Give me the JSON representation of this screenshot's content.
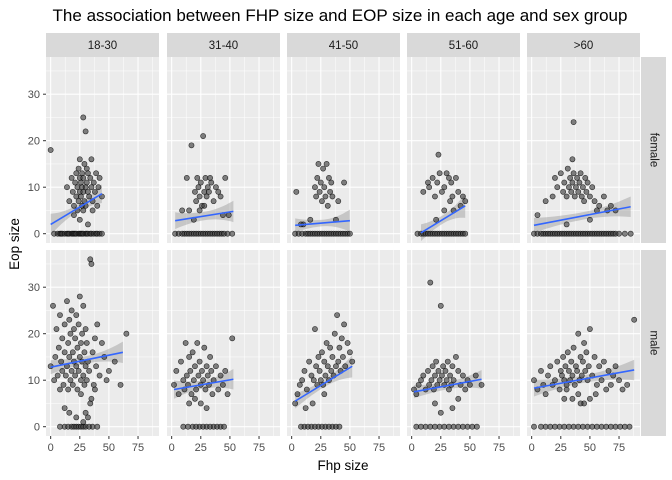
{
  "chart_data": {
    "type": "scatter",
    "title": "The association between FHP size and EOP size in each age and sex group",
    "xlabel": "Fhp size",
    "ylabel": "Eop size",
    "xlim": [
      -4,
      93
    ],
    "ylim": [
      -2,
      38
    ],
    "x_ticks": [
      0,
      25,
      50,
      75
    ],
    "y_ticks_female": [
      0,
      10,
      20,
      30
    ],
    "y_ticks_male": [
      0,
      10,
      20,
      30
    ],
    "facet_cols": [
      "18-30",
      "31-40",
      "41-50",
      "51-60",
      ">60"
    ],
    "facet_rows": [
      "female",
      "male"
    ],
    "grid": true,
    "point_color": "#333333",
    "line_color": "#3366FF",
    "band_color": "#999999",
    "panel_bg": "#EBEBEB",
    "strip_bg": "#D9D9D9",
    "panels": [
      {
        "col": "18-30",
        "row": "female",
        "zero_x": [
          3,
          6,
          8,
          9,
          10,
          12,
          14,
          15,
          16,
          18,
          19,
          20,
          21,
          22,
          24,
          25,
          26,
          27,
          28,
          30,
          31,
          32,
          34,
          35,
          37,
          39,
          40,
          42,
          44
        ],
        "x": [
          0,
          14,
          16,
          18,
          19,
          20,
          21,
          22,
          22,
          23,
          23,
          24,
          24,
          25,
          25,
          25,
          26,
          26,
          27,
          27,
          27,
          28,
          28,
          28,
          29,
          29,
          30,
          30,
          30,
          31,
          31,
          32,
          32,
          33,
          34,
          35,
          35,
          36,
          37,
          38,
          39,
          40,
          41,
          42,
          44,
          20,
          25,
          28,
          32,
          36
        ],
        "y": [
          18,
          10,
          7,
          12,
          9,
          6,
          11,
          8,
          13,
          5,
          10,
          14,
          7,
          9,
          12,
          16,
          8,
          11,
          6,
          10,
          13,
          25,
          9,
          12,
          7,
          15,
          10,
          22,
          6,
          11,
          14,
          9,
          13,
          8,
          12,
          10,
          16,
          7,
          11,
          9,
          13,
          6,
          10,
          12,
          8,
          4,
          3,
          5,
          2,
          5
        ],
        "fit": {
          "x0": 0,
          "y0": 2.0,
          "x1": 44,
          "y1": 8.6
        },
        "band": {
          "w0": 2.3,
          "wmid": 0.8,
          "w1": 2.0
        }
      },
      {
        "col": "31-40",
        "row": "female",
        "zero_x": [
          3,
          6,
          9,
          11,
          13,
          15,
          17,
          19,
          21,
          23,
          25,
          27,
          29,
          31,
          33,
          35,
          37,
          39,
          41,
          43,
          45,
          48,
          52
        ],
        "x": [
          9,
          13,
          17,
          20,
          21,
          22,
          23,
          24,
          25,
          26,
          27,
          28,
          29,
          30,
          31,
          32,
          34,
          36,
          38,
          40,
          42,
          44,
          46,
          49,
          24,
          28,
          33,
          15,
          19
        ],
        "y": [
          5,
          12,
          19,
          9,
          7,
          12,
          10,
          8,
          11,
          6,
          21,
          9,
          12,
          8,
          10,
          9,
          11,
          7,
          10,
          9,
          8,
          4,
          12,
          4,
          5,
          6,
          12,
          5,
          3
        ],
        "fit": {
          "x0": 3,
          "y0": 2.8,
          "x1": 53,
          "y1": 4.8
        },
        "band": {
          "w0": 1.8,
          "wmid": 0.9,
          "w1": 2.3
        }
      },
      {
        "col": "41-50",
        "row": "female",
        "zero_x": [
          3,
          6,
          9,
          12,
          14,
          16,
          18,
          20,
          22,
          24,
          26,
          28,
          30,
          32,
          34,
          36,
          38,
          40,
          42,
          44,
          46,
          48,
          50
        ],
        "x": [
          4,
          10,
          20,
          21,
          22,
          23,
          24,
          25,
          26,
          27,
          28,
          29,
          30,
          31,
          32,
          33,
          34,
          35,
          38,
          40,
          45,
          8,
          16
        ],
        "y": [
          9,
          2,
          10,
          8,
          12,
          15,
          9,
          11,
          7,
          14,
          10,
          8,
          15,
          6,
          12,
          9,
          11,
          8,
          3,
          7,
          11,
          2,
          3
        ],
        "fit": {
          "x0": 3,
          "y0": 1.8,
          "x1": 50,
          "y1": 2.8
        },
        "band": {
          "w0": 1.5,
          "wmid": 0.7,
          "w1": 2.4
        }
      },
      {
        "col": "51-60",
        "row": "female",
        "zero_x": [
          5,
          8,
          10,
          12,
          14,
          16,
          18,
          20,
          22,
          24,
          26,
          28,
          30,
          32,
          34,
          36,
          38,
          40,
          42,
          44,
          46
        ],
        "x": [
          10,
          14,
          15,
          18,
          20,
          22,
          23,
          24,
          26,
          28,
          30,
          32,
          33,
          34,
          35,
          36,
          38,
          40,
          42,
          44,
          46,
          21,
          28
        ],
        "y": [
          9,
          11,
          10,
          12,
          8,
          11,
          17,
          13,
          9,
          10,
          13,
          12,
          7,
          11,
          8,
          5,
          12,
          9,
          6,
          8,
          7,
          3,
          5
        ],
        "fit": {
          "x0": 8,
          "y0": 0.2,
          "x1": 46,
          "y1": 6.0
        },
        "band": {
          "w0": 1.8,
          "wmid": 0.9,
          "w1": 2.6
        }
      },
      {
        "col": ">60",
        "row": "female",
        "zero_x": [
          2,
          5,
          8,
          10,
          12,
          14,
          16,
          18,
          20,
          22,
          24,
          26,
          28,
          30,
          32,
          34,
          36,
          38,
          40,
          42,
          44,
          46,
          48,
          50,
          52,
          54,
          56,
          58,
          60,
          62,
          64,
          66,
          68,
          70,
          72,
          75,
          80,
          85
        ],
        "x": [
          5,
          12,
          18,
          20,
          22,
          25,
          27,
          28,
          30,
          31,
          32,
          33,
          34,
          35,
          35,
          36,
          37,
          38,
          39,
          40,
          41,
          42,
          43,
          44,
          45,
          46,
          47,
          48,
          50,
          52,
          54,
          56,
          58,
          62,
          65,
          68,
          72,
          36,
          30,
          50
        ],
        "y": [
          4,
          7,
          8,
          12,
          10,
          13,
          9,
          11,
          8,
          14,
          10,
          12,
          9,
          16,
          11,
          13,
          8,
          10,
          12,
          9,
          11,
          13,
          8,
          10,
          7,
          12,
          9,
          11,
          8,
          10,
          7,
          5,
          6,
          8,
          5,
          6,
          5,
          24,
          2,
          3
        ],
        "fit": {
          "x0": 2,
          "y0": 1.8,
          "x1": 85,
          "y1": 5.8
        },
        "band": {
          "w0": 1.6,
          "wmid": 0.8,
          "w1": 2.2
        }
      },
      {
        "col": "18-30",
        "row": "male",
        "zero_x": [
          8,
          12,
          15,
          18,
          20,
          22,
          24,
          26,
          28,
          30,
          33,
          36,
          40
        ],
        "x": [
          0,
          2,
          3,
          4,
          5,
          6,
          7,
          8,
          8,
          9,
          10,
          10,
          11,
          12,
          12,
          13,
          14,
          14,
          15,
          15,
          16,
          16,
          17,
          17,
          18,
          18,
          19,
          19,
          20,
          20,
          21,
          21,
          22,
          22,
          23,
          23,
          24,
          24,
          25,
          25,
          26,
          26,
          27,
          27,
          28,
          28,
          29,
          29,
          30,
          30,
          31,
          31,
          32,
          33,
          34,
          35,
          36,
          37,
          38,
          39,
          40,
          42,
          44,
          46,
          48,
          50,
          55,
          60,
          65,
          30,
          32,
          34,
          35,
          28,
          22,
          16,
          12,
          26,
          38
        ],
        "y": [
          13,
          26,
          10,
          15,
          21,
          11,
          17,
          8,
          24,
          14,
          12,
          19,
          9,
          22,
          16,
          11,
          27,
          13,
          18,
          8,
          23,
          15,
          10,
          20,
          12,
          25,
          16,
          9,
          21,
          14,
          11,
          19,
          13,
          24,
          8,
          17,
          22,
          12,
          15,
          28,
          10,
          18,
          14,
          20,
          11,
          26,
          16,
          9,
          21,
          13,
          18,
          10,
          14,
          12,
          36,
          35,
          16,
          9,
          19,
          13,
          22,
          11,
          18,
          15,
          10,
          12,
          14,
          9,
          20,
          3,
          2,
          5,
          6,
          1,
          2,
          3,
          4,
          7,
          8
        ],
        "fit": {
          "x0": 0,
          "y0": 12.8,
          "x1": 62,
          "y1": 16.0
        },
        "band": {
          "w0": 1.5,
          "wmid": 0.8,
          "w1": 2.3
        }
      },
      {
        "col": "31-40",
        "row": "male",
        "zero_x": [
          10,
          14,
          18,
          21,
          24,
          27,
          30,
          33,
          36,
          39,
          42,
          45
        ],
        "x": [
          2,
          4,
          6,
          8,
          10,
          11,
          12,
          13,
          14,
          15,
          16,
          17,
          18,
          19,
          20,
          21,
          22,
          23,
          24,
          25,
          26,
          27,
          28,
          29,
          30,
          31,
          32,
          33,
          34,
          35,
          36,
          38,
          40,
          42,
          44,
          46,
          48,
          52,
          20,
          25,
          30,
          15
        ],
        "y": [
          9,
          12,
          7,
          14,
          10,
          8,
          18,
          11,
          9,
          15,
          12,
          7,
          16,
          10,
          13,
          8,
          18,
          11,
          14,
          9,
          12,
          10,
          17,
          8,
          13,
          11,
          9,
          15,
          12,
          7,
          10,
          13,
          8,
          11,
          9,
          12,
          7,
          19,
          6,
          5,
          4,
          5
        ],
        "fit": {
          "x0": 2,
          "y0": 8.0,
          "x1": 53,
          "y1": 10.2
        },
        "band": {
          "w0": 2.0,
          "wmid": 0.9,
          "w1": 2.2
        }
      },
      {
        "col": "41-50",
        "row": "male",
        "zero_x": [
          8,
          11,
          14,
          17,
          20,
          23,
          26,
          29,
          32,
          35,
          38,
          41
        ],
        "x": [
          3,
          5,
          7,
          9,
          11,
          13,
          15,
          17,
          19,
          20,
          21,
          22,
          23,
          24,
          25,
          26,
          27,
          28,
          29,
          30,
          31,
          32,
          33,
          34,
          35,
          36,
          37,
          38,
          39,
          40,
          41,
          42,
          43,
          44,
          45,
          46,
          48,
          50,
          52,
          12,
          18,
          28
        ],
        "y": [
          5,
          7,
          9,
          10,
          12,
          8,
          14,
          11,
          10,
          21,
          13,
          9,
          15,
          12,
          10,
          16,
          9,
          14,
          11,
          18,
          13,
          10,
          17,
          12,
          15,
          11,
          20,
          13,
          24,
          14,
          17,
          12,
          19,
          15,
          22,
          13,
          18,
          16,
          14,
          4,
          5,
          7
        ],
        "fit": {
          "x0": 3,
          "y0": 5.5,
          "x1": 52,
          "y1": 13.0
        },
        "band": {
          "w0": 1.6,
          "wmid": 0.8,
          "w1": 2.4
        }
      },
      {
        "col": "51-60",
        "row": "male",
        "zero_x": [
          4,
          8,
          12,
          16,
          20,
          24,
          28,
          32,
          36,
          40,
          44,
          48,
          52,
          56
        ],
        "x": [
          2,
          4,
          6,
          8,
          10,
          12,
          14,
          15,
          16,
          17,
          18,
          19,
          20,
          21,
          22,
          23,
          24,
          25,
          26,
          27,
          28,
          29,
          30,
          31,
          32,
          33,
          34,
          35,
          36,
          38,
          40,
          42,
          44,
          46,
          48,
          50,
          55,
          60,
          20,
          35,
          25,
          40
        ],
        "y": [
          8,
          7,
          9,
          10,
          11,
          8,
          12,
          9,
          31,
          10,
          13,
          8,
          11,
          14,
          9,
          12,
          10,
          26,
          11,
          13,
          9,
          12,
          10,
          14,
          8,
          11,
          9,
          13,
          10,
          15,
          12,
          9,
          11,
          8,
          10,
          9,
          11,
          9,
          5,
          4,
          3,
          6
        ],
        "fit": {
          "x0": 2,
          "y0": 7.5,
          "x1": 60,
          "y1": 10.2
        },
        "band": {
          "w0": 1.4,
          "wmid": 0.8,
          "w1": 2.0
        }
      },
      {
        "col": ">60",
        "row": "male",
        "zero_x": [
          2,
          8,
          12,
          16,
          20,
          24,
          28,
          32,
          36,
          40,
          44,
          48,
          52,
          56,
          60,
          64,
          68,
          72,
          76,
          80,
          84
        ],
        "x": [
          2,
          5,
          8,
          10,
          12,
          14,
          16,
          18,
          20,
          22,
          24,
          25,
          26,
          27,
          28,
          29,
          30,
          31,
          32,
          33,
          34,
          35,
          36,
          37,
          38,
          39,
          40,
          41,
          42,
          43,
          44,
          45,
          46,
          47,
          48,
          49,
          50,
          52,
          54,
          56,
          58,
          60,
          62,
          64,
          66,
          68,
          70,
          72,
          75,
          78,
          82,
          88,
          40,
          35,
          45,
          30,
          50,
          55,
          28,
          42
        ],
        "y": [
          10,
          8,
          12,
          9,
          7,
          11,
          13,
          9,
          10,
          14,
          8,
          12,
          11,
          15,
          10,
          13,
          9,
          16,
          12,
          10,
          14,
          11,
          17,
          9,
          13,
          12,
          20,
          10,
          15,
          11,
          14,
          18,
          12,
          16,
          10,
          13,
          21,
          11,
          15,
          9,
          13,
          10,
          14,
          8,
          12,
          9,
          11,
          13,
          10,
          8,
          9,
          23,
          7,
          6,
          5,
          8,
          6,
          7,
          6,
          5
        ],
        "fit": {
          "x0": 2,
          "y0": 8.3,
          "x1": 88,
          "y1": 12.2
        },
        "band": {
          "w0": 1.8,
          "wmid": 0.8,
          "w1": 2.2
        }
      }
    ]
  }
}
